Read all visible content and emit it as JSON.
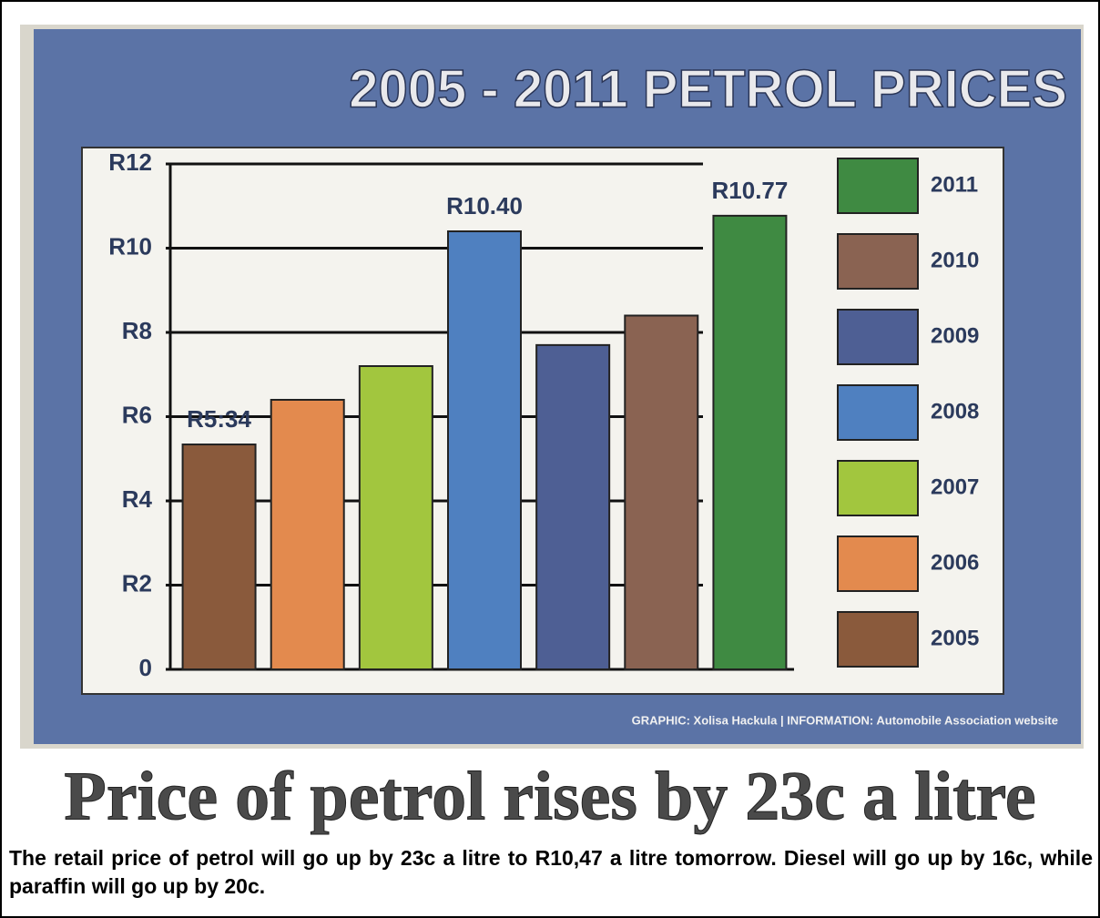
{
  "chart_data": {
    "type": "bar",
    "title": "2005 - 2011 PETROL PRICES",
    "categories": [
      "2005",
      "2006",
      "2007",
      "2008",
      "2009",
      "2010",
      "2011"
    ],
    "values": [
      5.34,
      6.4,
      7.2,
      10.4,
      7.7,
      8.4,
      10.77
    ],
    "value_labels": [
      "R5:34",
      null,
      null,
      "R10.40",
      null,
      null,
      "R10.77"
    ],
    "colors": [
      "#8a5a3c",
      "#e38a4e",
      "#a2c63e",
      "#4f80c0",
      "#4e5f94",
      "#8a6352",
      "#3f8a42"
    ],
    "ylim": [
      0,
      12
    ],
    "yticks": [
      0,
      {
        "value": 2,
        "label": "R2"
      },
      {
        "value": 4,
        "label": "R4"
      },
      {
        "value": 6,
        "label": "R6"
      },
      {
        "value": 8,
        "label": "R8"
      },
      {
        "value": 10,
        "label": "R10"
      },
      {
        "value": 12,
        "label": "R12"
      }
    ],
    "grid": true,
    "legend": "right",
    "credit": "GRAPHIC: Xolisa Hackula | INFORMATION: Automobile Association website"
  },
  "headline": "Price of petrol rises by 23c a litre",
  "body": "The retail price of petrol will go up by 23c a litre to R10,47 a litre tomorrow. Diesel will go up by 16c, while paraffin will go up by 20c."
}
